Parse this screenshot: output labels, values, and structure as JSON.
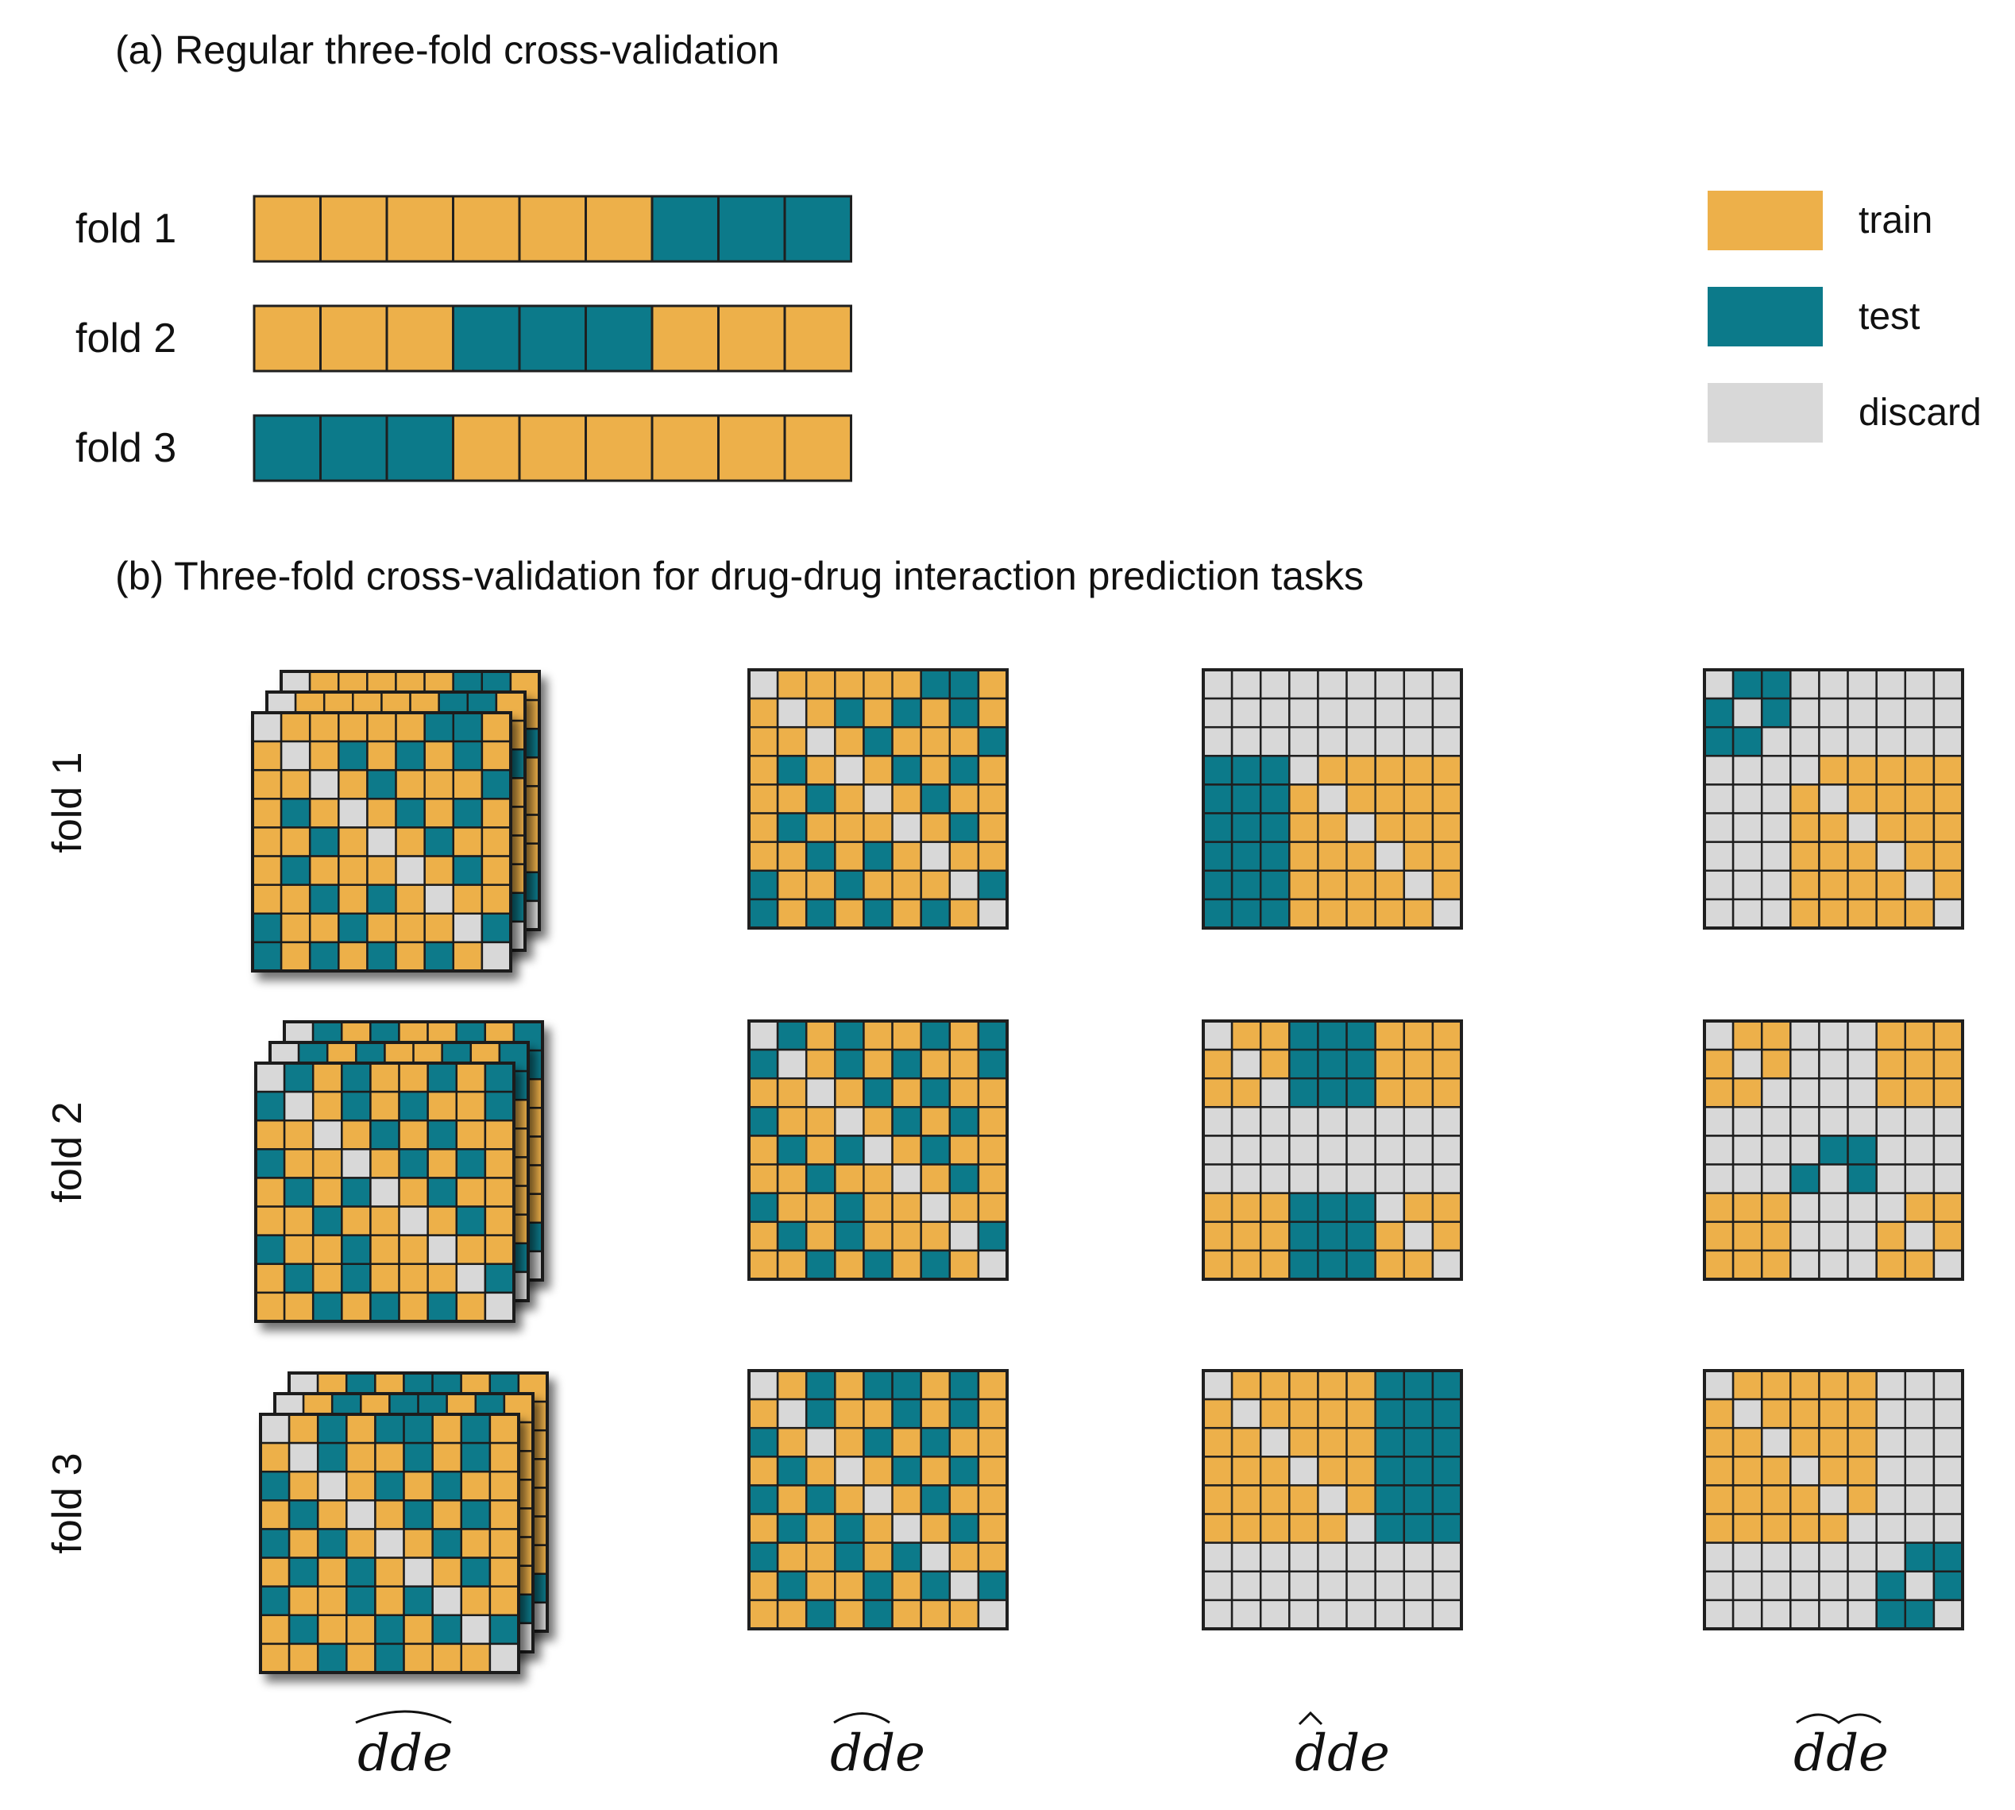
{
  "title_a": "(a) Regular three-fold cross-validation",
  "title_b": "(b) Three-fold cross-validation for drug-drug interaction prediction tasks",
  "colors": {
    "train": "#EDB04A",
    "test": "#0C7A8A",
    "discard": "#D8D8D8",
    "grid": "#1F1F1F"
  },
  "legend": [
    {
      "label": "train",
      "color_key": "train"
    },
    {
      "label": "test",
      "color_key": "test"
    },
    {
      "label": "discard",
      "color_key": "discard"
    }
  ],
  "fold_rows": [
    {
      "label": "fold 1",
      "cells": [
        "T",
        "T",
        "T",
        "T",
        "T",
        "T",
        "S",
        "S",
        "S"
      ]
    },
    {
      "label": "fold 2",
      "cells": [
        "T",
        "T",
        "T",
        "S",
        "S",
        "S",
        "T",
        "T",
        "T"
      ]
    },
    {
      "label": "fold 3",
      "cells": [
        "S",
        "S",
        "S",
        "T",
        "T",
        "T",
        "T",
        "T",
        "T"
      ]
    }
  ],
  "fold_labels_b": [
    "fold 1",
    "fold 2",
    "fold 3"
  ],
  "task_labels": [
    {
      "base": "dde",
      "accent": "wide-hat-all"
    },
    {
      "base": "dde",
      "accent": "wide-hat-dd"
    },
    {
      "base": "dde",
      "accent": "hat-d"
    },
    {
      "base": "dde",
      "accent": "hat-d-hat-d"
    }
  ],
  "matrices": [
    [
      [
        "DTTTTTSST",
        "TDTSTSTST",
        "TTDTSTTTS",
        "TSTDTSTST",
        "TTSTDTSTT",
        "TSTTTDTST",
        "TTSTSTDTT",
        "STTSTTTDS",
        "STSTSTSTD"
      ],
      [
        "DTTTTTSST",
        "TDTSTSTST",
        "TTDTSTTTS",
        "TSTDTSTST",
        "TTSTDTSTT",
        "TSTTTDTST",
        "TTSTSTDTT",
        "STTSTTTDS",
        "STSTSTSTD"
      ],
      [
        "DDDDDDDDD",
        "DDDDDDDDD",
        "DDDDDDDDD",
        "SSSDTTTTT",
        "SSSTDTTTT",
        "SSSTTDTTT",
        "SSSTTTDTT",
        "SSSTTTTDT",
        "SSSTTTTTD"
      ],
      [
        "DSSDDDDDD",
        "SDSDDDDDD",
        "SSDDDDDDD",
        "DDDDTTTTT",
        "DDDTDTTTT",
        "DDDTTDTTT",
        "DDDTTTDTT",
        "DDDTTTTDT",
        "DDDTTTTTD"
      ]
    ],
    [
      [
        "DSTSTTSTS",
        "SDTSTSTTS",
        "TTDTSTSTT",
        "STTDTSTST",
        "TSTSDTSTT",
        "TTSTTDTST",
        "STTSTTDTT",
        "TSTSTTTDS",
        "TTSTSTSTD"
      ],
      [
        "DSTSTTSTS",
        "SDTSTSTTS",
        "TTDTSTSTT",
        "STTDTSTST",
        "TSTSDTSTT",
        "TTSTTDTST",
        "STTSTTDTT",
        "TSTSTTTDS",
        "TTSTSTSTD"
      ],
      [
        "DTTSSSTTT",
        "TDTSSSTTT",
        "TTDSSSTTT",
        "DDDDDDDDD",
        "DDDDDDDDD",
        "DDDDDDDDD",
        "TTTSSSDTT",
        "TTTSSSTDT",
        "TTTSSSTTD"
      ],
      [
        "DTTDDDTTT",
        "TDTDDDTTT",
        "TTDDDDTTT",
        "DDDDDDDDD",
        "DDDDSSDDD",
        "DDDSDSDDD",
        "TTTDDDDTT",
        "TTTDDDTDT",
        "TTTDDDTTD"
      ]
    ],
    [
      [
        "DTSTSSTST",
        "TDSTTSTST",
        "STDTSTSTT",
        "TSTDTSTST",
        "STSTDTSTT",
        "TSTSTDTST",
        "STTSTSDTT",
        "TSTTSTSDS",
        "TTSTSTTTD"
      ],
      [
        "DTSTSSTST",
        "TDSTTSTST",
        "STDTSTSTT",
        "TSTDTSTST",
        "STSTDTSTT",
        "TSTSTDTST",
        "STTSTSDTT",
        "TSTTSTSDS",
        "TTSTSTTTD"
      ],
      [
        "DTTTTTSSS",
        "TDTTTTSSS",
        "TTDTTTSSS",
        "TTTDTTSSS",
        "TTTTDTSSS",
        "TTTTTDSSS",
        "DDDDDDDDD",
        "DDDDDDDDD",
        "DDDDDDDDD"
      ],
      [
        "DTTTTTDDD",
        "TDTTTTDDD",
        "TTDTTTDDD",
        "TTTDTTDDD",
        "TTTTDTDDD",
        "TTTTTDDDD",
        "DDDDDDDSS",
        "DDDDDDSDS",
        "DDDDDDSSD"
      ]
    ]
  ]
}
